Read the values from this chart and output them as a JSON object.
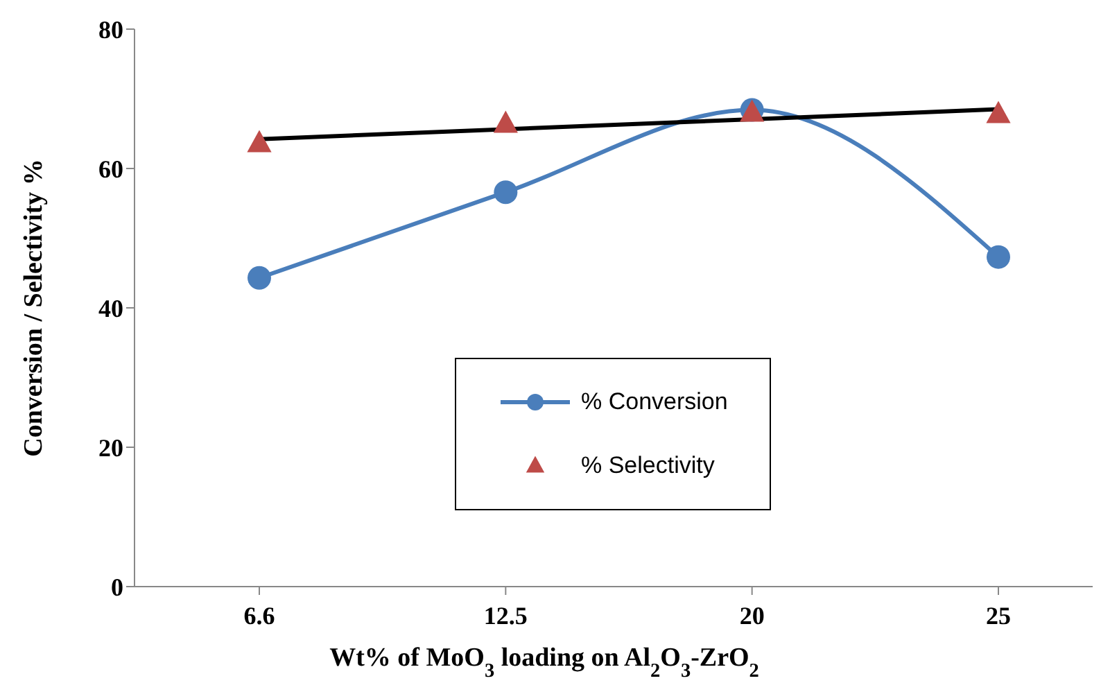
{
  "chart_data": {
    "type": "line",
    "xlabel": "Wt% of MoO$_{3}$ loading on Al$_{2}$O$_{3}$-ZrO$_{2}$",
    "ylabel": "Conversion / Selectivity %",
    "categories": [
      "6.6",
      "12.5",
      "20",
      "25"
    ],
    "series": [
      {
        "name": "% Conversion",
        "color": "#4a7ebb",
        "marker": "circle",
        "values": [
          44.3,
          56.6,
          68.4,
          47.3
        ]
      },
      {
        "name": "% Selectivity",
        "type": "scatter",
        "color": "#be4b48",
        "marker": "triangle",
        "values": [
          63.6,
          66.4,
          68.0,
          67.8
        ]
      },
      {
        "color": "#000000",
        "marker": "none",
        "values": [
          64.2,
          null,
          null,
          68.5
        ]
      }
    ],
    "ylim": [
      0,
      80
    ],
    "yticks": [
      0,
      20,
      40,
      60,
      80
    ],
    "grid": false,
    "legend": "bottom"
  }
}
